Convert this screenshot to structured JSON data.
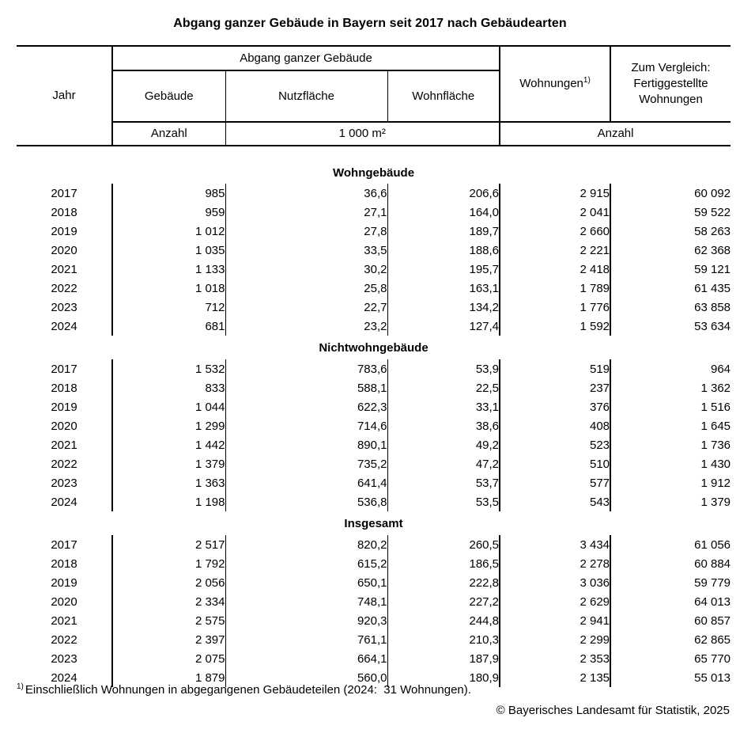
{
  "title": "Abgang ganzer Gebäude in Bayern seit 2017 nach Gebäudearten",
  "table": {
    "header": {
      "jahr": "Jahr",
      "group": "Abgang ganzer Gebäude",
      "col_gebaeude": "Gebäude",
      "col_nutzflaeche": "Nutzfläche",
      "col_wohnflaeche": "Wohnfläche",
      "col_wohnungen": "Wohnungen",
      "wohnungen_footnote_marker": "1)",
      "col_vergleich": "Zum Vergleich: Fertiggestellte Wohnungen",
      "unit_gebaeude": "Anzahl",
      "unit_flaeche": "1 000 m²",
      "unit_wohnungen": "Anzahl"
    },
    "sections": [
      {
        "label": "Wohngebäude",
        "rows": [
          [
            "2017",
            "985",
            "36,6",
            "206,6",
            "2 915",
            "60 092"
          ],
          [
            "2018",
            "959",
            "27,1",
            "164,0",
            "2 041",
            "59 522"
          ],
          [
            "2019",
            "1 012",
            "27,8",
            "189,7",
            "2 660",
            "58 263"
          ],
          [
            "2020",
            "1 035",
            "33,5",
            "188,6",
            "2 221",
            "62 368"
          ],
          [
            "2021",
            "1 133",
            "30,2",
            "195,7",
            "2 418",
            "59 121"
          ],
          [
            "2022",
            "1 018",
            "25,8",
            "163,1",
            "1 789",
            "61 435"
          ],
          [
            "2023",
            "712",
            "22,7",
            "134,2",
            "1 776",
            "63 858"
          ],
          [
            "2024",
            "681",
            "23,2",
            "127,4",
            "1 592",
            "53 634"
          ]
        ]
      },
      {
        "label": "Nichtwohngebäude",
        "rows": [
          [
            "2017",
            "1 532",
            "783,6",
            "53,9",
            "519",
            "964"
          ],
          [
            "2018",
            "833",
            "588,1",
            "22,5",
            "237",
            "1 362"
          ],
          [
            "2019",
            "1 044",
            "622,3",
            "33,1",
            "376",
            "1 516"
          ],
          [
            "2020",
            "1 299",
            "714,6",
            "38,6",
            "408",
            "1 645"
          ],
          [
            "2021",
            "1 442",
            "890,1",
            "49,2",
            "523",
            "1 736"
          ],
          [
            "2022",
            "1 379",
            "735,2",
            "47,2",
            "510",
            "1 430"
          ],
          [
            "2023",
            "1 363",
            "641,4",
            "53,7",
            "577",
            "1 912"
          ],
          [
            "2024",
            "1 198",
            "536,8",
            "53,5",
            "543",
            "1 379"
          ]
        ]
      },
      {
        "label": "Insgesamt",
        "rows": [
          [
            "2017",
            "2 517",
            "820,2",
            "260,5",
            "3 434",
            "61 056"
          ],
          [
            "2018",
            "1 792",
            "615,2",
            "186,5",
            "2 278",
            "60 884"
          ],
          [
            "2019",
            "2 056",
            "650,1",
            "222,8",
            "3 036",
            "59 779"
          ],
          [
            "2020",
            "2 334",
            "748,1",
            "227,2",
            "2 629",
            "64 013"
          ],
          [
            "2021",
            "2 575",
            "920,3",
            "244,8",
            "2 941",
            "60 857"
          ],
          [
            "2022",
            "2 397",
            "761,1",
            "210,3",
            "2 299",
            "62 865"
          ],
          [
            "2023",
            "2 075",
            "664,1",
            "187,9",
            "2 353",
            "65 770"
          ],
          [
            "2024",
            "1 879",
            "560,0",
            "180,9",
            "2 135",
            "55 013"
          ]
        ]
      }
    ]
  },
  "footnote": {
    "marker": "1)",
    "text": "Einschließlich Wohnungen in abgegangenen Gebäudeteilen (2024:  31 Wohnungen)."
  },
  "copyright": "© Bayerisches Landesamt für Statistik, 2025"
}
